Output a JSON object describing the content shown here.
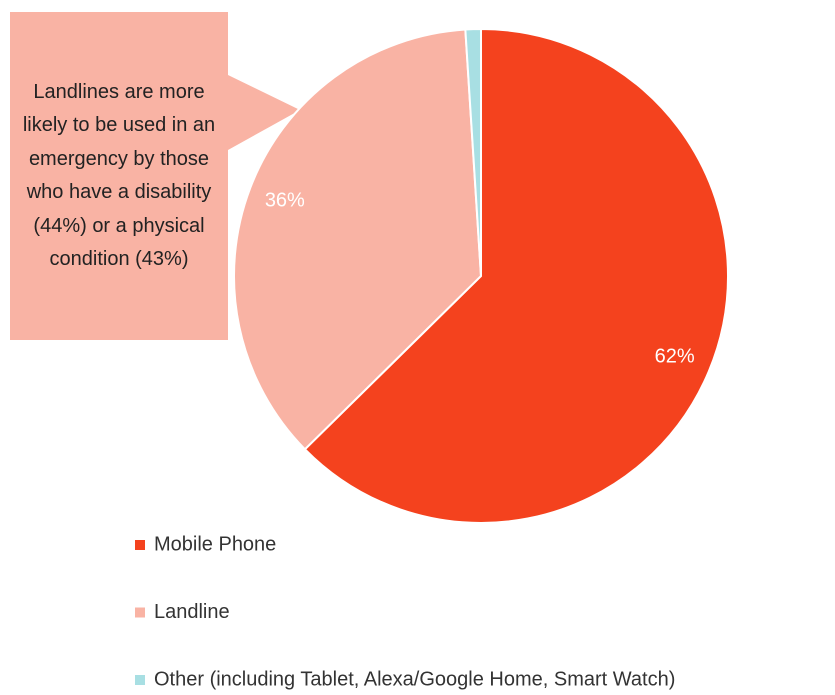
{
  "chart_data": {
    "type": "pie",
    "categories": [
      "Mobile Phone",
      "Landline",
      "Other (including Tablet, Alexa/Google Home, Smart Watch)"
    ],
    "values": [
      62,
      36,
      1
    ],
    "value_labels": [
      "62%",
      "36%",
      null
    ],
    "colors": [
      "#f4421e",
      "#f9b3a4",
      "#a8dfe3"
    ],
    "annotation": "Landlines are more likely to be used in an emergency by those who have a disability (44%) or a physical condition (43%)",
    "legend": "bottom"
  }
}
